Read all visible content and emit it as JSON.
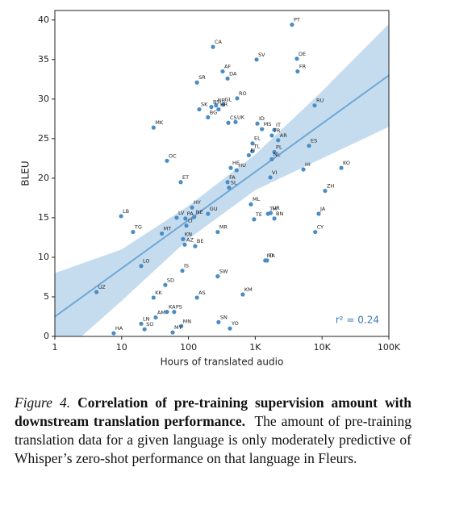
{
  "chart_data": {
    "type": "scatter",
    "xlabel": "Hours of translated audio",
    "ylabel": "BLEU",
    "annotation": "r² = 0.24",
    "xscale": "log",
    "xlim": [
      1,
      100000
    ],
    "ylim": [
      0,
      41.2
    ],
    "xticks": [
      1,
      10,
      100,
      {
        "value": 1000,
        "label": "1K"
      },
      {
        "value": 10000,
        "label": "10K"
      },
      {
        "value": 100000,
        "label": "100K"
      }
    ],
    "yticks": [
      0,
      5,
      10,
      15,
      20,
      25,
      30,
      35,
      40
    ],
    "color": "#4a8cc4",
    "labels": [
      "PT",
      "CA",
      "SV",
      "DE",
      "FR",
      "AF",
      "DA",
      "SR",
      "RO",
      "RU",
      "BS",
      "NB",
      "GL",
      "SK",
      "HR",
      "BG",
      "CS",
      "UK",
      "MK",
      "ID",
      "MS",
      "IT",
      "TR",
      "AR",
      "EL",
      "ES",
      "FI",
      "TL",
      "PL",
      "NL",
      "OC",
      "KO",
      "HI",
      "HE",
      "HU",
      "VI",
      "ET",
      "FA",
      "SL",
      "ZH",
      "ML",
      "UR",
      "TH",
      "JA",
      "LB",
      "TE",
      "BN",
      "HY",
      "GU",
      "LV",
      "PA",
      "NE",
      "LT",
      "TG",
      "MT",
      "MR",
      "CY",
      "KN",
      "AZ",
      "BE",
      "LO",
      "MI",
      "TA",
      "IS",
      "SW",
      "SD",
      "UZ",
      "KM",
      "AS",
      "KK",
      "KA",
      "PS",
      "AM",
      "LN",
      "SN",
      "MN",
      "SO",
      "YO",
      "MY",
      "HA"
    ],
    "x": [
      3548,
      233,
      1047,
      4200,
      4300,
      325,
      385,
      134,
      536,
      7740,
      220,
      259,
      330,
      145,
      282,
      196,
      395,
      507,
      30,
      1075,
      1260,
      1930,
      1770,
      2200,
      910,
      6370,
      800,
      900,
      1930,
      1770,
      47.7,
      19400,
      5250,
      430,
      525,
      1680,
      76.6,
      385,
      405,
      11100,
      860,
      1700,
      1550,
      8890,
      9.8,
      960,
      1930,
      113,
      196,
      66.6,
      90,
      122,
      93,
      14.8,
      40,
      274,
      7900,
      83,
      88,
      126,
      19.6,
      1410,
      1500,
      81,
      274,
      45,
      4.2,
      650,
      134,
      30,
      47.7,
      61,
      32.3,
      19.6,
      282,
      78,
      22,
      418,
      58,
      7.6
    ],
    "y": [
      39.4,
      36.6,
      35.0,
      35.1,
      33.5,
      33.5,
      32.6,
      32.1,
      30.1,
      29.2,
      29.0,
      29.2,
      29.3,
      28.7,
      28.7,
      27.7,
      27.0,
      27.1,
      26.4,
      26.9,
      26.2,
      26.1,
      25.4,
      24.8,
      24.4,
      24.1,
      22.9,
      23.4,
      23.3,
      22.4,
      22.2,
      21.3,
      21.1,
      21.3,
      21.0,
      20.1,
      19.5,
      19.5,
      18.8,
      18.4,
      16.7,
      15.6,
      15.5,
      15.5,
      15.2,
      14.8,
      14.9,
      16.3,
      15.5,
      15.0,
      14.9,
      15.1,
      14.0,
      13.2,
      13.0,
      13.2,
      13.2,
      12.3,
      11.6,
      11.4,
      8.9,
      9.6,
      9.6,
      8.3,
      7.6,
      6.5,
      5.6,
      5.3,
      4.9,
      4.9,
      3.1,
      3.1,
      2.4,
      1.6,
      1.8,
      1.3,
      0.9,
      1.0,
      0.5,
      0.4
    ],
    "trend": {
      "color": "#6fa8d6",
      "x": [
        1,
        10,
        100,
        1000,
        10000,
        100000
      ],
      "y": [
        2.5,
        8.6,
        14.7,
        20.8,
        26.9,
        33.0
      ],
      "lower": [
        -3,
        4.5,
        12.3,
        18.5,
        22.5,
        26.5
      ],
      "upper": [
        8.0,
        11,
        16.5,
        23,
        31,
        39.5
      ]
    }
  },
  "caption": {
    "label": "Figure 4.",
    "title": "Correlation of pre-training supervision amount with downstream translation performance.",
    "text": "The amount of pre-training translation data for a given language is only moderately predictive of Whisper’s zero-shot performance on that language in Fleurs."
  }
}
